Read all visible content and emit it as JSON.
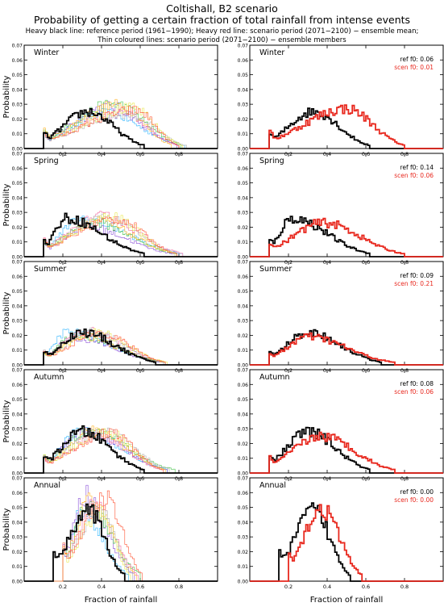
{
  "header": {
    "line1": "Coltishall, B2 scenario",
    "line2": "Probability of getting a certain fraction of total rainfall from intense events",
    "line3": "Heavy black line: reference period (1961−1990); Heavy red line: scenario period (2071−2100) − ensemble mean;",
    "line4": "Thin coloured lines: scenario period (2071−2100) − ensemble members"
  },
  "chart_data": {
    "type": "line",
    "style": "step-histogram",
    "xlabel": "Fraction of rainfall",
    "ylabel": "Probability",
    "xlim": [
      0,
      1
    ],
    "ylim": [
      0,
      0.07
    ],
    "x_ticks": [
      "0.2",
      "0.4",
      "0.6",
      "0.8"
    ],
    "y_ticks": [
      "0.00",
      "0.01",
      "0.02",
      "0.03",
      "0.04",
      "0.05",
      "0.06",
      "0.07"
    ],
    "colors": {
      "reference": "#000000",
      "scenario_mean": "#e8281e",
      "members": [
        "#2fb5ff",
        "#8a4fd8",
        "#46c24a",
        "#ffb020",
        "#f06aa0",
        "#b0b0b0",
        "#e8e84a",
        "#ff5030"
      ]
    },
    "panels": [
      {
        "season": "Winter",
        "ref_label": "ref  f0: 0.06",
        "scen_label": "scen f0: 0.01",
        "reference": {
          "start": 0.1,
          "peak": 0.33,
          "peak_value": 0.025,
          "end": 0.62
        },
        "scenario_mean": {
          "start": 0.1,
          "peak": 0.5,
          "peak_value": 0.027,
          "end": 0.8
        },
        "members_peak_range": [
          0.42,
          0.58
        ]
      },
      {
        "season": "Spring",
        "ref_label": "ref  f0: 0.14",
        "scen_label": "scen f0: 0.06",
        "reference": {
          "start": 0.1,
          "peak": 0.22,
          "peak_value": 0.026,
          "end": 0.62
        },
        "scenario_mean": {
          "start": 0.1,
          "peak": 0.38,
          "peak_value": 0.023,
          "end": 0.8
        },
        "members_peak_range": [
          0.3,
          0.48
        ]
      },
      {
        "season": "Summer",
        "ref_label": "ref  f0: 0.09",
        "scen_label": "scen f0: 0.21",
        "reference": {
          "start": 0.1,
          "peak": 0.3,
          "peak_value": 0.022,
          "end": 0.68
        },
        "scenario_mean": {
          "start": 0.1,
          "peak": 0.3,
          "peak_value": 0.019,
          "end": 0.75
        },
        "members_peak_range": [
          0.22,
          0.4
        ]
      },
      {
        "season": "Autumn",
        "ref_label": "ref  f0: 0.08",
        "scen_label": "scen f0: 0.06",
        "reference": {
          "start": 0.1,
          "peak": 0.3,
          "peak_value": 0.028,
          "end": 0.62
        },
        "scenario_mean": {
          "start": 0.1,
          "peak": 0.37,
          "peak_value": 0.025,
          "end": 0.75
        },
        "members_peak_range": [
          0.3,
          0.45
        ]
      },
      {
        "season": "Annual",
        "ref_label": "ref  f0: 0.00",
        "scen_label": "scen f0: 0.00",
        "reference": {
          "start": 0.15,
          "peak": 0.33,
          "peak_value": 0.048,
          "end": 0.52
        },
        "scenario_mean": {
          "start": 0.2,
          "peak": 0.37,
          "peak_value": 0.049,
          "end": 0.58
        },
        "members_peak_range": [
          0.3,
          0.42
        ]
      }
    ]
  }
}
